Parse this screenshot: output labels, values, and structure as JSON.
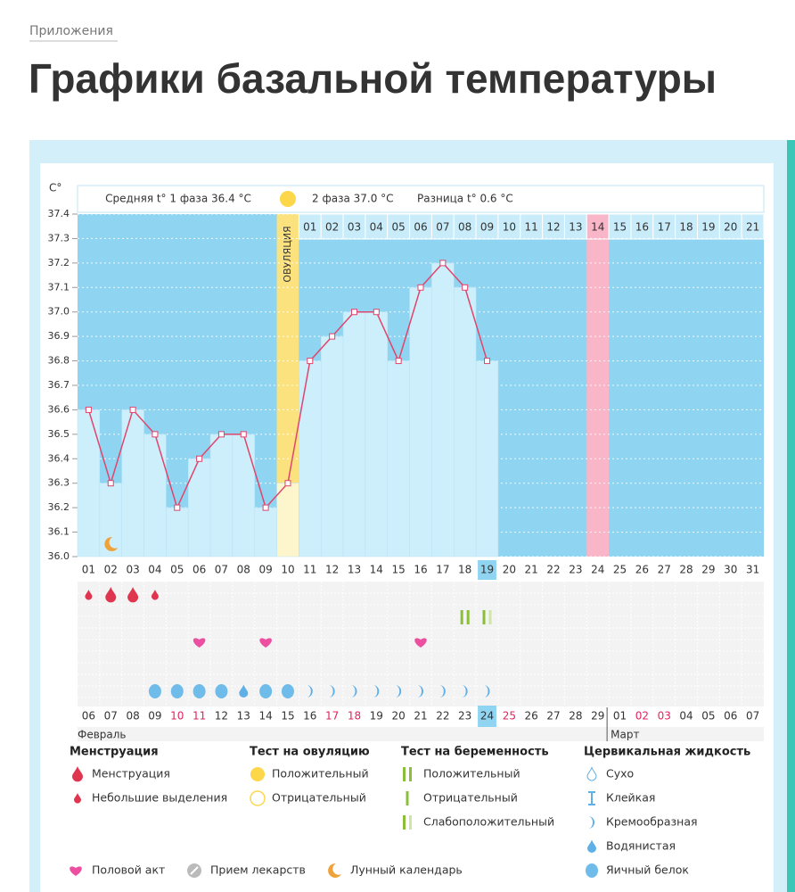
{
  "breadcrumb": "Приложения",
  "title": "Графики базальной температуры",
  "chart_data": {
    "type": "bar",
    "y_unit": "C°",
    "phase1_summary": "Средняя t° 1 фаза 36.4 °C",
    "phase2_summary": "2 фаза 37.0 °C",
    "difference": "Разница t° 0.6 °C",
    "ovulation_label": "ОВУЛЯЦИЯ",
    "ovulation_day": "10",
    "categories": [
      "01",
      "02",
      "03",
      "04",
      "05",
      "06",
      "07",
      "08",
      "09",
      "10",
      "11",
      "12",
      "13",
      "14",
      "15",
      "16",
      "17",
      "18",
      "19",
      "20",
      "21",
      "22",
      "23",
      "24",
      "25",
      "26",
      "27",
      "28",
      "29",
      "30",
      "31"
    ],
    "values": [
      36.6,
      36.3,
      36.6,
      36.5,
      36.2,
      36.4,
      36.5,
      36.5,
      36.2,
      36.3,
      36.8,
      36.9,
      37.0,
      37.0,
      36.8,
      37.1,
      37.2,
      37.1,
      36.8,
      null,
      null,
      null,
      null,
      null,
      null,
      null,
      null,
      null,
      null,
      null,
      null
    ],
    "phase2_days": [
      "01",
      "02",
      "03",
      "04",
      "05",
      "06",
      "07",
      "08",
      "09",
      "10",
      "11",
      "12",
      "13",
      "14",
      "15",
      "16",
      "17",
      "18",
      "19",
      "20",
      "21"
    ],
    "marked_phase2_day": "14",
    "current_day": "19",
    "dates": [
      "06",
      "07",
      "08",
      "09",
      "10",
      "11",
      "12",
      "13",
      "14",
      "15",
      "16",
      "17",
      "18",
      "19",
      "20",
      "21",
      "22",
      "23",
      "24",
      "25",
      "26",
      "27",
      "28",
      "29",
      "01",
      "02",
      "03",
      "04",
      "05",
      "06",
      "07"
    ],
    "date_colors": [
      "#333",
      "#333",
      "#333",
      "#333",
      "#e0245e",
      "#e0245e",
      "#333",
      "#333",
      "#333",
      "#333",
      "#333",
      "#e0245e",
      "#e0245e",
      "#333",
      "#333",
      "#333",
      "#333",
      "#333",
      "#333",
      "#e0245e",
      "#333",
      "#333",
      "#333",
      "#333",
      "#333",
      "#e0245e",
      "#e0245e",
      "#333",
      "#333",
      "#333",
      "#333"
    ],
    "months": [
      "Февраль",
      "Март"
    ],
    "ylim": [
      36,
      37.4
    ],
    "yticks": [
      {
        "value": 36,
        "label": "36.0"
      },
      36.1,
      36.2,
      36.3,
      36.4,
      36.5,
      36.6,
      36.7,
      36.8,
      36.9,
      {
        "value": 37,
        "label": "37.0"
      },
      37.1,
      37.2,
      37.3,
      37.4
    ],
    "grid": true,
    "colors": {
      "background": "#8fd4f1",
      "bar": "#cdeefb",
      "line": "#e0456c",
      "ovulation": "#fbe27e",
      "ovulation_bar": "#fdf6cc",
      "marked": "#f8b6c8"
    },
    "symbols": {
      "menstruation": [
        "Небольшие выделения",
        "Менструация",
        "Менструация",
        "Небольшие выделения",
        null,
        null,
        null,
        null,
        null,
        null,
        null,
        null,
        null,
        null,
        null,
        null,
        null,
        null,
        null,
        null,
        null,
        null,
        null,
        null,
        null,
        null,
        null,
        null,
        null,
        null,
        null
      ],
      "pregnancy_test": [
        null,
        null,
        null,
        null,
        null,
        null,
        null,
        null,
        null,
        null,
        null,
        null,
        null,
        null,
        null,
        null,
        null,
        "Положительный",
        "Слабоположительный",
        null,
        null,
        null,
        null,
        null,
        null,
        null,
        null,
        null,
        null,
        null,
        null
      ],
      "intercourse": [
        null,
        null,
        null,
        null,
        null,
        "Половой акт",
        null,
        null,
        "Половой акт",
        null,
        null,
        null,
        null,
        null,
        null,
        "Половой акт",
        null,
        null,
        null,
        null,
        null,
        null,
        null,
        null,
        null,
        null,
        null,
        null,
        null,
        null,
        null
      ],
      "cervical_fluid": [
        null,
        null,
        null,
        "Яичный белок",
        "Яичный белок",
        "Яичный белок",
        "Яичный белок",
        "Водянистая",
        "Яичный белок",
        "Яичный белок",
        "Кремообразная",
        "Кремообразная",
        "Кремообразная",
        "Кремообразная",
        "Кремообразная",
        "Кремообразная",
        "Кремообразная",
        "Кремообразная",
        "Кремообразная",
        null,
        null,
        null,
        null,
        null,
        null,
        null,
        null,
        null,
        null,
        null,
        null
      ],
      "moon": [
        null,
        "Лунный календарь",
        null,
        null,
        null,
        null,
        null,
        null,
        null,
        null,
        null,
        null,
        null,
        null,
        null,
        null,
        null,
        null,
        null,
        null,
        null,
        null,
        null,
        null,
        null,
        null,
        null,
        null,
        null,
        null,
        null
      ]
    }
  },
  "legend": {
    "groups": [
      {
        "title": "Менструация",
        "items": [
          "Менструация",
          "Небольшие выделения"
        ]
      },
      {
        "title": "Тест на овуляцию",
        "items": [
          "Положительный",
          "Отрицательный"
        ]
      },
      {
        "title": "Тест на беременность",
        "items": [
          "Положительный",
          "Отрицательный",
          "Слабоположительный"
        ]
      },
      {
        "title": "Цервикальная жидкость",
        "items": [
          "Сухо",
          "Клейкая",
          "Кремообразная",
          "Водянистая",
          "Яичный белок"
        ]
      }
    ],
    "extra": [
      "Половой акт",
      "Прием лекарств",
      "Лунный календарь"
    ]
  }
}
